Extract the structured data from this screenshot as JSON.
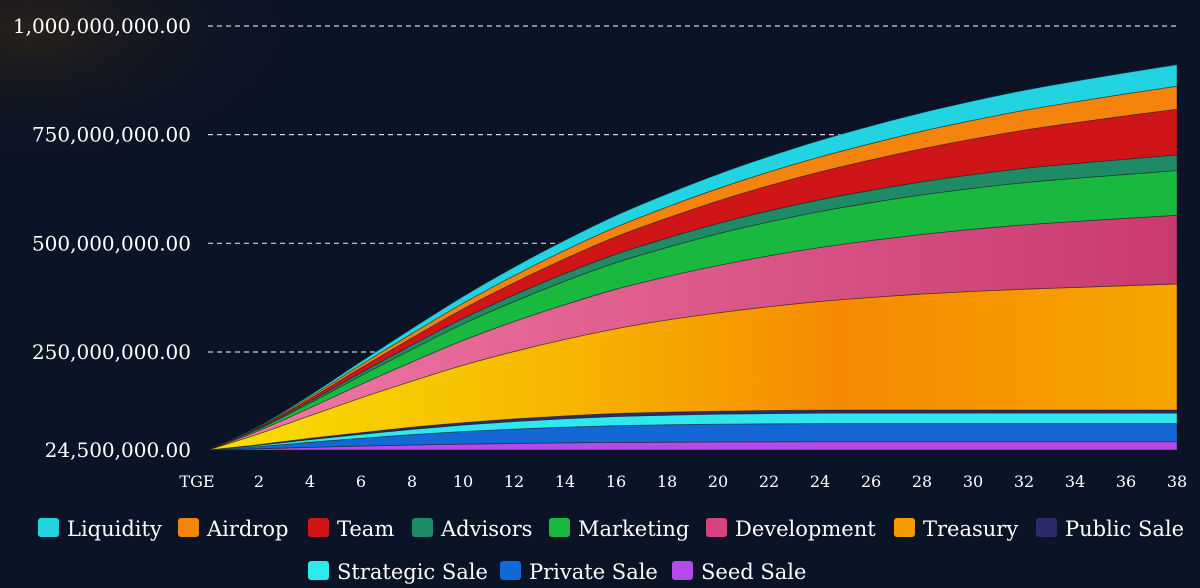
{
  "chart_data": {
    "type": "area",
    "stacked": true,
    "title": "",
    "xlabel": "",
    "ylabel": "",
    "x_tick_labels": [
      "TGE",
      "2",
      "4",
      "6",
      "8",
      "10",
      "12",
      "14",
      "16",
      "18",
      "20",
      "22",
      "24",
      "26",
      "28",
      "30",
      "32",
      "34",
      "36",
      "38"
    ],
    "x_tick_values": [
      0,
      2,
      4,
      6,
      8,
      10,
      12,
      14,
      16,
      18,
      20,
      22,
      24,
      26,
      28,
      30,
      32,
      34,
      36,
      38
    ],
    "xlim": [
      0,
      38
    ],
    "y_tick_labels": [
      "24,500,000.00",
      "250,000,000.00",
      "500,000,000.00",
      "750,000,000.00",
      "1,000,000,000.00"
    ],
    "y_tick_values": [
      24500000,
      250000000,
      500000000,
      750000000,
      1000000000
    ],
    "ylim": [
      24500000,
      1000000000
    ],
    "grid": "horizontal-dashed",
    "legend_position": "bottom",
    "x": [
      0,
      2,
      4,
      6,
      8,
      10,
      12,
      14,
      16,
      18,
      20,
      22,
      24,
      26,
      28,
      30,
      32,
      34,
      36,
      38
    ],
    "series": [
      {
        "name": "Seed Sale",
        "color": "#b44ae8",
        "values": [
          0,
          3000000,
          6000000,
          9000000,
          11500000,
          13500000,
          15000000,
          16500000,
          17500000,
          18000000,
          18500000,
          18800000,
          19000000,
          19000000,
          19000000,
          19000000,
          19000000,
          19000000,
          19000000,
          19000000
        ]
      },
      {
        "name": "Private Sale",
        "color": "#1368d6",
        "values": [
          0,
          5000000,
          12000000,
          18000000,
          24000000,
          29000000,
          33000000,
          36000000,
          38500000,
          40000000,
          41000000,
          41500000,
          41800000,
          42000000,
          42000000,
          42000000,
          42000000,
          42000000,
          42000000,
          42000000
        ]
      },
      {
        "name": "Strategic Sale",
        "color": "#2fe8ee",
        "values": [
          0,
          3000000,
          6000000,
          9000000,
          12000000,
          15000000,
          17500000,
          19500000,
          21000000,
          22000000,
          23000000,
          23500000,
          24000000,
          24000000,
          24000000,
          24000000,
          24000000,
          24000000,
          24000000,
          24000000
        ]
      },
      {
        "name": "Public Sale",
        "color": "#2e2a6e",
        "values": [
          0,
          1500000,
          3000000,
          4000000,
          5000000,
          5500000,
          6000000,
          6500000,
          7000000,
          7000000,
          7000000,
          7000000,
          7000000,
          7000000,
          7000000,
          7000000,
          7000000,
          7000000,
          7000000,
          7000000
        ]
      },
      {
        "name": "Treasury",
        "color": "#f59a00",
        "values": [
          0,
          25000000,
          52000000,
          80000000,
          106000000,
          132000000,
          155000000,
          176000000,
          195000000,
          212000000,
          226000000,
          239000000,
          250000000,
          259000000,
          267000000,
          273000000,
          278000000,
          282000000,
          286000000,
          290000000
        ]
      },
      {
        "name": "Development",
        "color": "#d6447d",
        "values": [
          0,
          7000000,
          18000000,
          31000000,
          44000000,
          57000000,
          69000000,
          80000000,
          91000000,
          100000000,
          109000000,
          117000000,
          124000000,
          131000000,
          137000000,
          143000000,
          148000000,
          152000000,
          155000000,
          158000000
        ]
      },
      {
        "name": "Marketing",
        "color": "#19b93f",
        "values": [
          0,
          4000000,
          11000000,
          20000000,
          29000000,
          38000000,
          46000000,
          54000000,
          61000000,
          67000000,
          73000000,
          78000000,
          83000000,
          87000000,
          91000000,
          94000000,
          97000000,
          99000000,
          101000000,
          103000000
        ]
      },
      {
        "name": "Advisors",
        "color": "#1e8a66",
        "values": [
          0,
          1500000,
          4000000,
          7000000,
          10000000,
          12500000,
          15000000,
          17500000,
          19500000,
          21500000,
          23500000,
          25500000,
          27000000,
          28500000,
          30000000,
          31500000,
          33000000,
          34000000,
          35000000,
          36000000
        ]
      },
      {
        "name": "Team",
        "color": "#d01518",
        "values": [
          0,
          2000000,
          6000000,
          11000000,
          16500000,
          22000000,
          28000000,
          34000000,
          40000000,
          46000000,
          52000000,
          58000000,
          64000000,
          70000000,
          76000000,
          82000000,
          88000000,
          94000000,
          100000000,
          105000000
        ]
      },
      {
        "name": "Airdrop",
        "color": "#f5840e",
        "values": [
          0,
          1500000,
          4000000,
          7000000,
          10000000,
          13000000,
          16500000,
          19500000,
          22500000,
          25500000,
          28500000,
          31500000,
          34500000,
          37500000,
          40500000,
          43000000,
          45500000,
          48000000,
          50500000,
          53000000
        ]
      },
      {
        "name": "Liquidity",
        "color": "#22d3e2",
        "values": [
          0,
          1500000,
          4000000,
          7500000,
          11500000,
          15500000,
          19500000,
          23000000,
          26500000,
          30000000,
          33000000,
          35500000,
          38000000,
          40500000,
          42500000,
          44500000,
          46000000,
          47500000,
          48500000,
          49500000
        ]
      }
    ],
    "legend": [
      {
        "name": "Liquidity",
        "color": "#22d3e2"
      },
      {
        "name": "Airdrop",
        "color": "#f5840e"
      },
      {
        "name": "Team",
        "color": "#d01518"
      },
      {
        "name": "Advisors",
        "color": "#1e8a66"
      },
      {
        "name": "Marketing",
        "color": "#19b93f"
      },
      {
        "name": "Development",
        "color": "#d6447d"
      },
      {
        "name": "Treasury",
        "color": "#f59a00"
      },
      {
        "name": "Public Sale",
        "color": "#2e2a6e"
      },
      {
        "name": "Strategic Sale",
        "color": "#2fe8ee"
      },
      {
        "name": "Private Sale",
        "color": "#1368d6"
      },
      {
        "name": "Seed Sale",
        "color": "#b44ae8"
      }
    ]
  }
}
